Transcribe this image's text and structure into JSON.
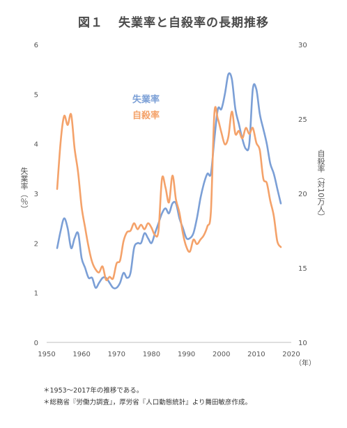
{
  "title": {
    "label": "図１",
    "text": "失業率と自殺率の長期推移"
  },
  "notes": [
    "＊1953～2017年の推移である。",
    "＊総務省『労働力調査』，厚労省『人口動態統計』より舞田敏彦作成。"
  ],
  "chart_data": {
    "type": "line",
    "title": "失業率と自殺率の長期推移",
    "xlabel": "（年）",
    "ylabel_left": "失業率（％）",
    "ylabel_right": "自殺率（対10万人）",
    "xlim": [
      1950,
      2020
    ],
    "ylim_left": [
      0,
      6
    ],
    "ylim_right": [
      10,
      30
    ],
    "x_ticks": [
      1950,
      1960,
      1970,
      1980,
      1990,
      2000,
      2010,
      2020
    ],
    "y_ticks_left": [
      0,
      1,
      2,
      3,
      4,
      5,
      6
    ],
    "y_ticks_right": [
      10,
      15,
      20,
      25,
      30
    ],
    "grid": false,
    "legend_position": "inside, upper center",
    "series": [
      {
        "name": "失業率",
        "axis": "left",
        "color": "#7b9fd6",
        "x": [
          1953,
          1954,
          1955,
          1956,
          1957,
          1958,
          1959,
          1960,
          1961,
          1962,
          1963,
          1964,
          1965,
          1966,
          1967,
          1968,
          1969,
          1970,
          1971,
          1972,
          1973,
          1974,
          1975,
          1976,
          1977,
          1978,
          1979,
          1980,
          1981,
          1982,
          1983,
          1984,
          1985,
          1986,
          1987,
          1988,
          1989,
          1990,
          1991,
          1992,
          1993,
          1994,
          1995,
          1996,
          1997,
          1998,
          1999,
          2000,
          2001,
          2002,
          2003,
          2004,
          2005,
          2006,
          2007,
          2008,
          2009,
          2010,
          2011,
          2012,
          2013,
          2014,
          2015,
          2016,
          2017
        ],
        "values": [
          1.9,
          2.25,
          2.5,
          2.3,
          1.9,
          2.1,
          2.2,
          1.7,
          1.5,
          1.3,
          1.3,
          1.1,
          1.2,
          1.3,
          1.3,
          1.2,
          1.1,
          1.1,
          1.2,
          1.4,
          1.3,
          1.4,
          1.9,
          2.0,
          2.0,
          2.2,
          2.1,
          2.0,
          2.2,
          2.4,
          2.6,
          2.7,
          2.6,
          2.8,
          2.8,
          2.5,
          2.3,
          2.1,
          2.1,
          2.2,
          2.5,
          2.9,
          3.2,
          3.4,
          3.4,
          4.1,
          4.7,
          4.7,
          5.0,
          5.4,
          5.3,
          4.7,
          4.4,
          4.1,
          3.9,
          4.0,
          5.1,
          5.1,
          4.6,
          4.3,
          4.0,
          3.6,
          3.4,
          3.1,
          2.8
        ]
      },
      {
        "name": "自殺率",
        "axis": "right",
        "color": "#f4a26a",
        "x": [
          1953,
          1954,
          1955,
          1956,
          1957,
          1958,
          1959,
          1960,
          1961,
          1962,
          1963,
          1964,
          1965,
          1966,
          1967,
          1968,
          1969,
          1970,
          1971,
          1972,
          1973,
          1974,
          1975,
          1976,
          1977,
          1978,
          1979,
          1980,
          1981,
          1982,
          1983,
          1984,
          1985,
          1986,
          1987,
          1988,
          1989,
          1990,
          1991,
          1992,
          1993,
          1994,
          1995,
          1996,
          1997,
          1998,
          1999,
          2000,
          2001,
          2002,
          2003,
          2004,
          2005,
          2006,
          2007,
          2008,
          2009,
          2010,
          2011,
          2012,
          2013,
          2014,
          2015,
          2016,
          2017
        ],
        "values": [
          20.3,
          23.5,
          25.2,
          24.6,
          25.3,
          23.0,
          21.4,
          19.1,
          17.7,
          16.4,
          15.4,
          14.9,
          14.7,
          15.1,
          14.2,
          14.4,
          14.3,
          15.3,
          15.5,
          16.8,
          17.4,
          17.5,
          18.0,
          17.6,
          17.9,
          17.6,
          18.0,
          17.7,
          17.2,
          17.5,
          21.0,
          20.4,
          19.4,
          21.2,
          19.6,
          18.7,
          17.3,
          16.4,
          16.1,
          16.9,
          16.6,
          16.9,
          17.2,
          17.8,
          18.8,
          25.4,
          25.0,
          24.1,
          23.3,
          23.8,
          25.5,
          24.0,
          24.2,
          23.7,
          24.4,
          24.0,
          24.4,
          23.4,
          22.9,
          21.0,
          20.7,
          19.5,
          18.5,
          16.8,
          16.4
        ]
      }
    ]
  }
}
